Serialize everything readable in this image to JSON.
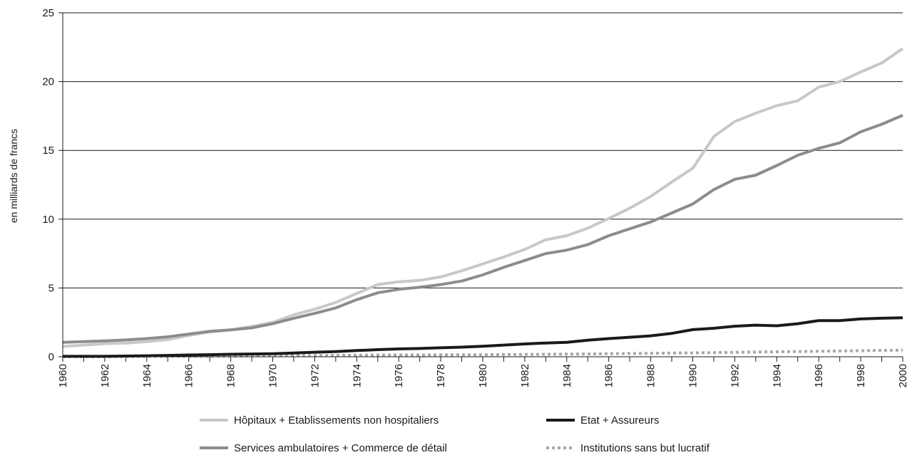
{
  "chart_data": {
    "type": "line",
    "title": "",
    "xlabel": "",
    "ylabel": "en milliards de francs",
    "ylim": [
      0,
      25
    ],
    "xlim": [
      1960,
      2000
    ],
    "y_ticks": [
      "0",
      "5",
      "10",
      "15",
      "20",
      "25"
    ],
    "x_ticks": [
      "1960",
      "1962",
      "1964",
      "1966",
      "1968",
      "1970",
      "1972",
      "1974",
      "1976",
      "1978",
      "1980",
      "1982",
      "1984",
      "1986",
      "1988",
      "1990",
      "1992",
      "1994",
      "1996",
      "1998",
      "2000"
    ],
    "grid": "horizontal",
    "legend_position": "bottom",
    "x": [
      1960,
      1961,
      1962,
      1963,
      1964,
      1965,
      1966,
      1967,
      1968,
      1969,
      1970,
      1971,
      1972,
      1973,
      1974,
      1975,
      1976,
      1977,
      1978,
      1979,
      1980,
      1981,
      1982,
      1983,
      1984,
      1985,
      1986,
      1987,
      1988,
      1989,
      1990,
      1991,
      1992,
      1993,
      1994,
      1995,
      1996,
      1997,
      1998,
      1999,
      2000
    ],
    "series": [
      {
        "name": "Hôpitaux + Etablissements non hospitaliers",
        "color": "#c8c8c8",
        "style": "solid",
        "values": [
          0.75,
          0.85,
          0.95,
          1.0,
          1.1,
          1.25,
          1.55,
          1.8,
          1.95,
          2.2,
          2.5,
          3.05,
          3.45,
          3.95,
          4.6,
          5.25,
          5.45,
          5.55,
          5.8,
          6.25,
          6.75,
          7.25,
          7.8,
          8.5,
          8.8,
          9.35,
          10.05,
          10.8,
          11.65,
          12.7,
          13.7,
          16.0,
          17.1,
          17.7,
          18.25,
          18.6,
          19.6,
          20.0,
          20.7,
          21.35,
          22.4
        ]
      },
      {
        "name": "Etat + Assureurs",
        "color": "#1a1a1a",
        "style": "solid",
        "values": [
          0.03,
          0.03,
          0.03,
          0.05,
          0.07,
          0.1,
          0.13,
          0.15,
          0.18,
          0.2,
          0.22,
          0.27,
          0.33,
          0.38,
          0.45,
          0.52,
          0.57,
          0.6,
          0.65,
          0.7,
          0.76,
          0.85,
          0.93,
          1.0,
          1.05,
          1.2,
          1.32,
          1.42,
          1.52,
          1.7,
          1.97,
          2.07,
          2.22,
          2.3,
          2.25,
          2.4,
          2.63,
          2.63,
          2.75,
          2.8,
          2.83
        ]
      },
      {
        "name": "Services ambulatoires  + Commerce de détail",
        "color": "#8c8c8c",
        "style": "solid",
        "values": [
          1.05,
          1.1,
          1.15,
          1.22,
          1.32,
          1.45,
          1.65,
          1.85,
          1.95,
          2.1,
          2.4,
          2.8,
          3.15,
          3.55,
          4.15,
          4.65,
          4.9,
          5.05,
          5.25,
          5.5,
          5.95,
          6.5,
          7.0,
          7.5,
          7.75,
          8.15,
          8.8,
          9.3,
          9.8,
          10.45,
          11.1,
          12.15,
          12.9,
          13.2,
          13.9,
          14.65,
          15.15,
          15.55,
          16.35,
          16.9,
          17.55
        ]
      },
      {
        "name": "Institutions sans but lucratif",
        "color": "#a8a8a8",
        "style": "dotted",
        "values": [
          0.0,
          0.0,
          0.0,
          0.01,
          0.02,
          0.03,
          0.04,
          0.05,
          0.05,
          0.06,
          0.07,
          0.08,
          0.09,
          0.1,
          0.11,
          0.12,
          0.13,
          0.13,
          0.14,
          0.14,
          0.15,
          0.16,
          0.17,
          0.18,
          0.19,
          0.2,
          0.22,
          0.24,
          0.25,
          0.27,
          0.28,
          0.3,
          0.32,
          0.34,
          0.36,
          0.38,
          0.4,
          0.42,
          0.44,
          0.46,
          0.48
        ]
      }
    ],
    "legend_order": [
      0,
      1,
      2,
      3
    ]
  }
}
